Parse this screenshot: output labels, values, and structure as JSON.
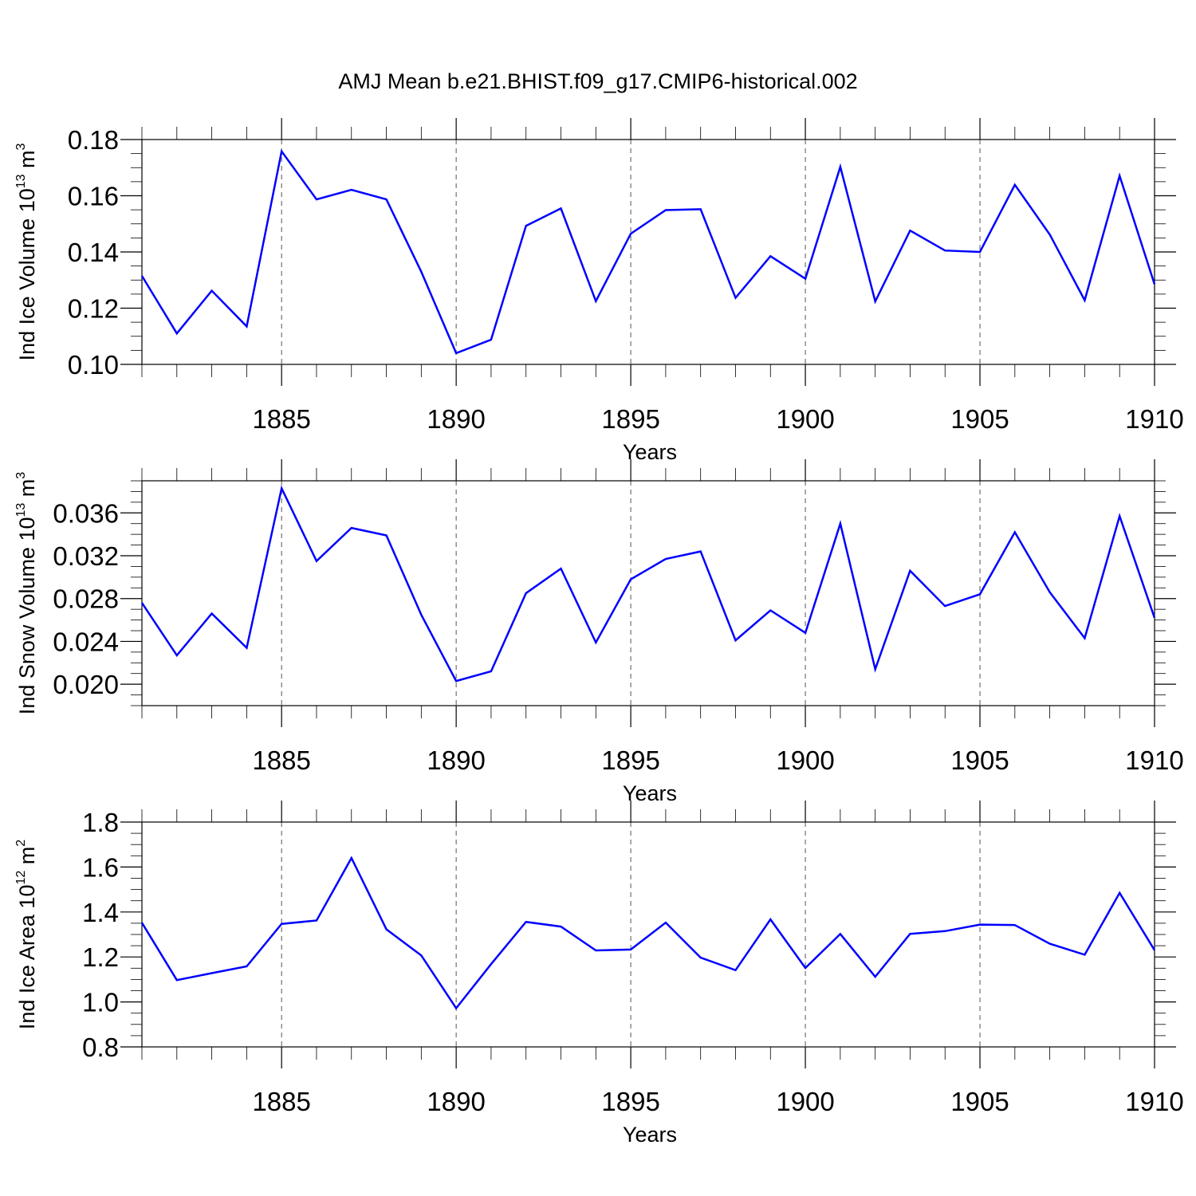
{
  "title": "AMJ Mean b.e21.BHIST.f09_g17.CMIP6-historical.002",
  "colors": {
    "series": "#0000ff",
    "axis": "#000000",
    "grid": "#555555",
    "background": "#ffffff"
  },
  "chart_data": [
    {
      "type": "line",
      "ylabel": {
        "text": "Ind Ice Volume 10",
        "exp": "13",
        "unit": " m",
        "unit_exp": "3"
      },
      "xlabel": "Years",
      "xlim": [
        1881,
        1910
      ],
      "ylim": [
        0.1,
        0.18
      ],
      "xticks": [
        1885,
        1890,
        1895,
        1900,
        1905,
        1910
      ],
      "xtick_labels": [
        "1885",
        "1890",
        "1895",
        "1900",
        "1905",
        "1910"
      ],
      "yticks": [
        0.1,
        0.12,
        0.14,
        0.16,
        0.18
      ],
      "ytick_labels": [
        "0.10",
        "0.12",
        "0.14",
        "0.16",
        "0.18"
      ],
      "ytick_minor_step": 0.005,
      "vertical_grid": "dashed",
      "x": [
        1881,
        1882,
        1883,
        1884,
        1885,
        1886,
        1887,
        1888,
        1889,
        1890,
        1891,
        1892,
        1893,
        1894,
        1895,
        1896,
        1897,
        1898,
        1899,
        1900,
        1901,
        1902,
        1903,
        1904,
        1905,
        1906,
        1907,
        1908,
        1909,
        1910
      ],
      "values": [
        0.1315,
        0.111,
        0.1262,
        0.1135,
        0.1758,
        0.1587,
        0.1621,
        0.1587,
        0.133,
        0.104,
        0.1088,
        0.1493,
        0.1555,
        0.1225,
        0.1465,
        0.1549,
        0.1552,
        0.1237,
        0.1385,
        0.1305,
        0.1703,
        0.1224,
        0.1476,
        0.1405,
        0.14,
        0.1639,
        0.1462,
        0.1228,
        0.1671,
        0.1285
      ]
    },
    {
      "type": "line",
      "ylabel": {
        "text": "Ind Snow Volume 10",
        "exp": "13",
        "unit": " m",
        "unit_exp": "3"
      },
      "xlabel": "Years",
      "xlim": [
        1881,
        1910
      ],
      "ylim": [
        0.018,
        0.039
      ],
      "xticks": [
        1885,
        1890,
        1895,
        1900,
        1905,
        1910
      ],
      "xtick_labels": [
        "1885",
        "1890",
        "1895",
        "1900",
        "1905",
        "1910"
      ],
      "yticks": [
        0.02,
        0.024,
        0.028,
        0.032,
        0.036
      ],
      "ytick_labels": [
        "0.020",
        "0.024",
        "0.028",
        "0.032",
        "0.036"
      ],
      "ytick_minor_step": 0.001,
      "vertical_grid": "dashed",
      "x": [
        1881,
        1882,
        1883,
        1884,
        1885,
        1886,
        1887,
        1888,
        1889,
        1890,
        1891,
        1892,
        1893,
        1894,
        1895,
        1896,
        1897,
        1898,
        1899,
        1900,
        1901,
        1902,
        1903,
        1904,
        1905,
        1906,
        1907,
        1908,
        1909,
        1910
      ],
      "values": [
        0.0276,
        0.0227,
        0.0266,
        0.0234,
        0.0383,
        0.0315,
        0.0346,
        0.0339,
        0.0265,
        0.0203,
        0.0212,
        0.0285,
        0.0308,
        0.0239,
        0.0298,
        0.0317,
        0.0324,
        0.0241,
        0.0269,
        0.0248,
        0.035,
        0.0214,
        0.0306,
        0.0273,
        0.0284,
        0.0342,
        0.0286,
        0.0243,
        0.0357,
        0.0262
      ]
    },
    {
      "type": "line",
      "ylabel": {
        "text": "Ind Ice Area 10",
        "exp": "12",
        "unit": " m",
        "unit_exp": "2"
      },
      "xlabel": "Years",
      "xlim": [
        1881,
        1910
      ],
      "ylim": [
        0.8,
        1.8
      ],
      "xticks": [
        1885,
        1890,
        1895,
        1900,
        1905,
        1910
      ],
      "xtick_labels": [
        "1885",
        "1890",
        "1895",
        "1900",
        "1905",
        "1910"
      ],
      "yticks": [
        0.8,
        1.0,
        1.2,
        1.4,
        1.6,
        1.8
      ],
      "ytick_labels": [
        "0.8",
        "1.0",
        "1.2",
        "1.4",
        "1.6",
        "1.8"
      ],
      "ytick_minor_step": 0.05,
      "vertical_grid": "dashed",
      "x": [
        1881,
        1882,
        1883,
        1884,
        1885,
        1886,
        1887,
        1888,
        1889,
        1890,
        1891,
        1892,
        1893,
        1894,
        1895,
        1896,
        1897,
        1898,
        1899,
        1900,
        1901,
        1902,
        1903,
        1904,
        1905,
        1906,
        1907,
        1908,
        1909,
        1910
      ],
      "values": [
        1.352,
        1.097,
        1.128,
        1.158,
        1.347,
        1.362,
        1.64,
        1.323,
        1.207,
        0.972,
        1.168,
        1.356,
        1.335,
        1.229,
        1.233,
        1.353,
        1.197,
        1.141,
        1.367,
        1.151,
        1.302,
        1.112,
        1.303,
        1.315,
        1.344,
        1.342,
        1.259,
        1.21,
        1.485,
        1.23
      ]
    }
  ]
}
